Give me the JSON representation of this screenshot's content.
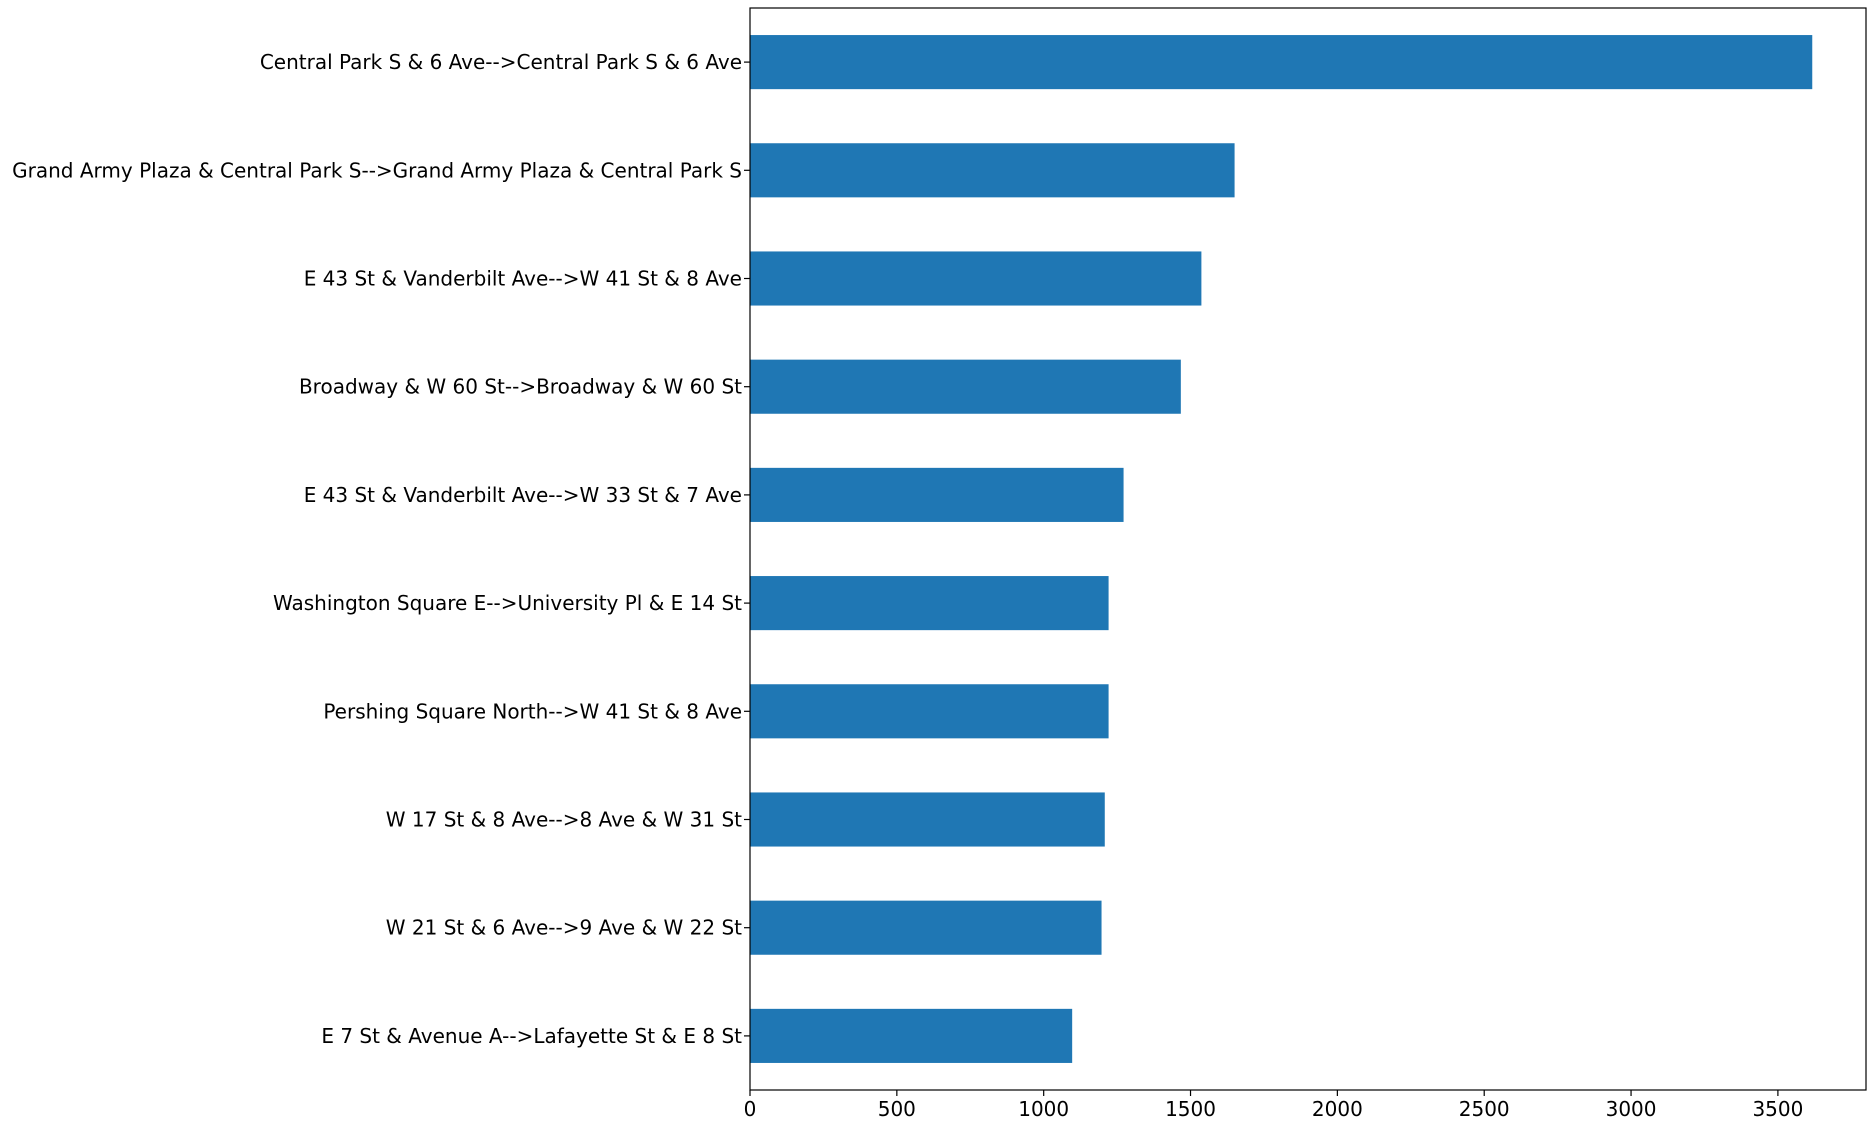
{
  "chart_data": {
    "type": "bar",
    "orientation": "horizontal",
    "categories": [
      "Central Park S & 6 Ave-->Central Park S & 6 Ave",
      "Grand Army Plaza & Central Park S-->Grand Army Plaza & Central Park S",
      "E 43 St & Vanderbilt Ave-->W 41 St & 8 Ave",
      "Broadway & W 60 St-->Broadway & W 60 St",
      "E 43 St & Vanderbilt Ave-->W 33 St & 7 Ave",
      "Washington Square E-->University Pl & E 14 St",
      "Pershing Square North-->W 41 St & 8 Ave",
      "W 17 St & 8 Ave-->8 Ave & W 31 St",
      "W 21 St & 6 Ave-->9 Ave & W 22 St",
      "E 7 St & Avenue A-->Lafayette St & E 8 St"
    ],
    "values": [
      3617,
      1650,
      1537,
      1467,
      1272,
      1221,
      1221,
      1208,
      1197,
      1097
    ],
    "xlim": [
      0,
      3800
    ],
    "xticks": [
      "0",
      "500",
      "1000",
      "1500",
      "2000",
      "2500",
      "3000",
      "3500"
    ],
    "title": "",
    "xlabel": "",
    "ylabel": "",
    "grid": false,
    "colors": {
      "bar": "#1f77b4"
    }
  }
}
